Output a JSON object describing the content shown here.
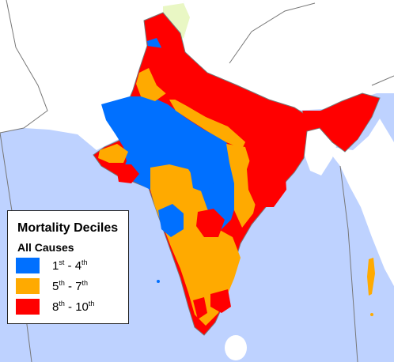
{
  "colors": {
    "sea": "#bed2ff",
    "foreign_land": "#ffffff",
    "border": "#777777",
    "disputed_region": "#e9f7c4",
    "decile_low": "#0070ff",
    "decile_mid": "#ffaa00",
    "decile_high": "#ff0000"
  },
  "legend": {
    "title": "Mortality Deciles",
    "subtitle": "All Causes",
    "items": [
      {
        "start": "1",
        "start_suffix": "st",
        "sep": " - ",
        "end": "4",
        "end_suffix": "th",
        "color": "#0070ff"
      },
      {
        "start": "5",
        "start_suffix": "th",
        "sep": " - ",
        "end": "7",
        "end_suffix": "th",
        "color": "#ffaa00"
      },
      {
        "start": "8",
        "start_suffix": "th",
        "sep": " - ",
        "end": "10",
        "end_suffix": "th",
        "color": "#ff0000"
      }
    ]
  }
}
